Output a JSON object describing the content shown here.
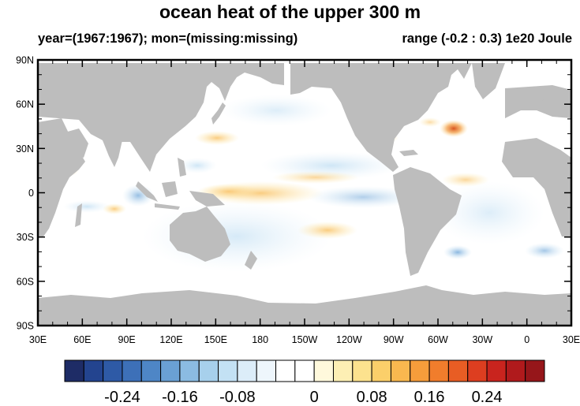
{
  "title": "ocean heat of the upper 300 m",
  "subtitle_left": "year=(1967:1967); mon=(missing:missing)",
  "subtitle_right": "range (-0.2 : 0.3) 1e20 Joule",
  "lat_labels": [
    "90N",
    "60N",
    "30N",
    "0",
    "30S",
    "60S",
    "90S"
  ],
  "lon_labels": [
    "30E",
    "60E",
    "90E",
    "120E",
    "150E",
    "180",
    "150W",
    "120W",
    "90W",
    "60W",
    "30W",
    "0",
    "30E"
  ],
  "colorbar": {
    "labels": [
      "-0.24",
      "-0.16",
      "-0.08",
      "0",
      "0.08",
      "0.16",
      "0.24"
    ],
    "colors": [
      "#1e2c66",
      "#23448f",
      "#2e5aa6",
      "#3d70b8",
      "#4e86c6",
      "#6aa0d4",
      "#8bbbe2",
      "#a7d0ec",
      "#c3e1f4",
      "#dcedf9",
      "#eef6fc",
      "#ffffff",
      "#ffffff",
      "#fff9dc",
      "#fdefb4",
      "#fce28e",
      "#fbcf6a",
      "#f9b84f",
      "#f69d3b",
      "#f17d2c",
      "#e85d24",
      "#dd3e20",
      "#c9241e",
      "#b01a1c",
      "#96161a"
    ]
  },
  "colors": {
    "land": "#bdbdbd",
    "ocean": "#ffffff"
  }
}
